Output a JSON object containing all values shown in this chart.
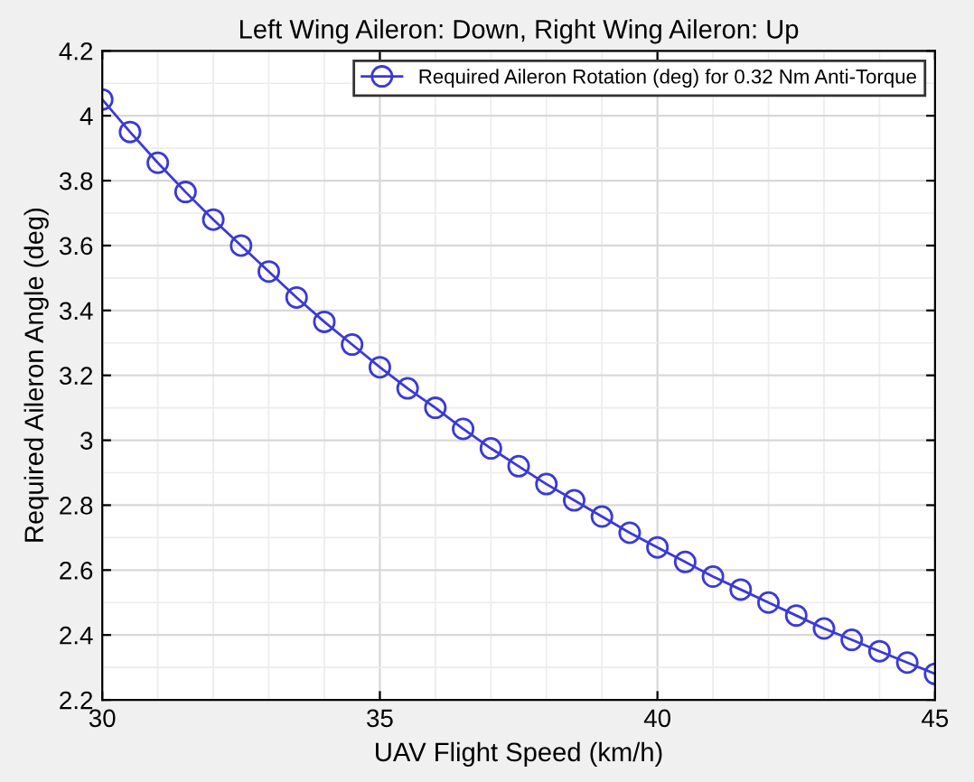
{
  "chart_data": {
    "type": "line",
    "title": "Left Wing Aileron: Down, Right Wing Aileron: Up",
    "xlabel": "UAV Flight Speed (km/h)",
    "ylabel": "Required Aileron Angle (deg)",
    "x": [
      30,
      30.5,
      31,
      31.5,
      32,
      32.5,
      33,
      33.5,
      34,
      34.5,
      35,
      35.5,
      36,
      36.5,
      37,
      37.5,
      38,
      38.5,
      39,
      39.5,
      40,
      40.5,
      41,
      41.5,
      42,
      42.5,
      43,
      43.5,
      44,
      44.5,
      45
    ],
    "series": [
      {
        "name": "Required Aileron Rotation (deg) for 0.32 Nm Anti-Torque",
        "color": "#3a3ad8",
        "values": [
          4.05,
          3.95,
          3.855,
          3.765,
          3.68,
          3.6,
          3.52,
          3.44,
          3.365,
          3.295,
          3.225,
          3.16,
          3.1,
          3.035,
          2.975,
          2.92,
          2.865,
          2.815,
          2.765,
          2.715,
          2.67,
          2.625,
          2.58,
          2.54,
          2.5,
          2.46,
          2.42,
          2.385,
          2.35,
          2.315,
          2.28
        ]
      }
    ],
    "xlim": [
      30,
      45
    ],
    "xticks": [
      30,
      35,
      40,
      45
    ],
    "ylim": [
      2.2,
      4.2
    ],
    "yticks": [
      2.2,
      2.4,
      2.6,
      2.8,
      {
        "value": 3,
        "label": "3"
      },
      3.2,
      3.4,
      3.6,
      3.8,
      {
        "value": 4,
        "label": "4"
      },
      4.2
    ],
    "grid": true,
    "legend": "top right",
    "marker": "circle",
    "line_style": "solid"
  }
}
